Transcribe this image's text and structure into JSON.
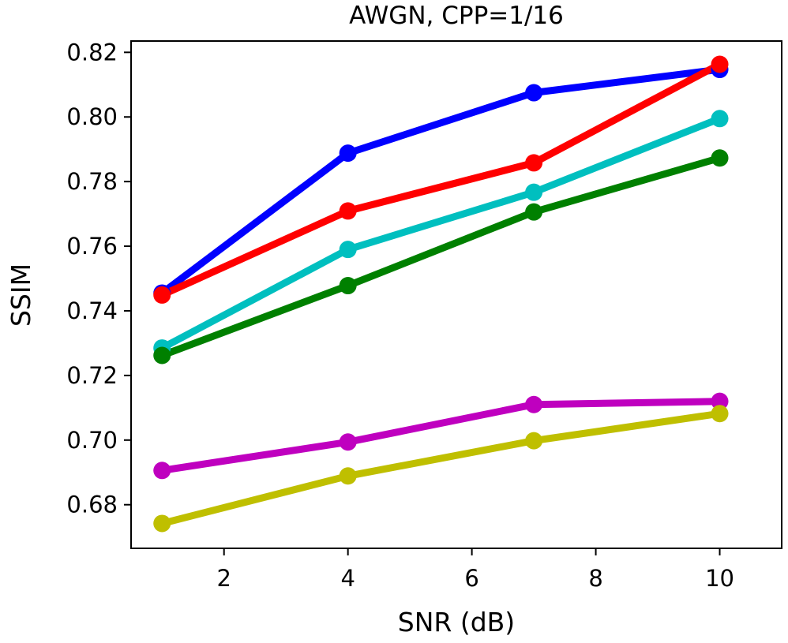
{
  "chart_data": {
    "type": "line",
    "title": "AWGN, CPP=1/16",
    "xlabel": "SNR (dB)",
    "ylabel": "SSIM",
    "x": [
      1,
      4,
      7,
      10
    ],
    "xlim": [
      0.5,
      11.0
    ],
    "ylim": [
      0.6665,
      0.8235
    ],
    "xticks": [
      2,
      4,
      6,
      8,
      10
    ],
    "xtick_labels": [
      "2",
      "4",
      "6",
      "8",
      "10"
    ],
    "yticks": [
      0.68,
      0.7,
      0.72,
      0.74,
      0.76,
      0.78,
      0.8,
      0.82
    ],
    "ytick_labels": [
      "0.68",
      "0.70",
      "0.72",
      "0.74",
      "0.76",
      "0.78",
      "0.80",
      "0.82"
    ],
    "grid": false,
    "series": [
      {
        "color": "#0000ff",
        "values": [
          0.7455,
          0.7888,
          0.8075,
          0.8147
        ]
      },
      {
        "color": "#ff0000",
        "values": [
          0.7449,
          0.7709,
          0.7858,
          0.8163
        ]
      },
      {
        "color": "#00bfbf",
        "values": [
          0.7285,
          0.759,
          0.7767,
          0.7995
        ]
      },
      {
        "color": "#008000",
        "values": [
          0.7262,
          0.7478,
          0.7706,
          0.7873
        ]
      },
      {
        "color": "#bf00bf",
        "values": [
          0.6906,
          0.6994,
          0.711,
          0.712
        ]
      },
      {
        "color": "#bfbf00",
        "values": [
          0.6742,
          0.6889,
          0.6998,
          0.7082
        ]
      }
    ]
  }
}
